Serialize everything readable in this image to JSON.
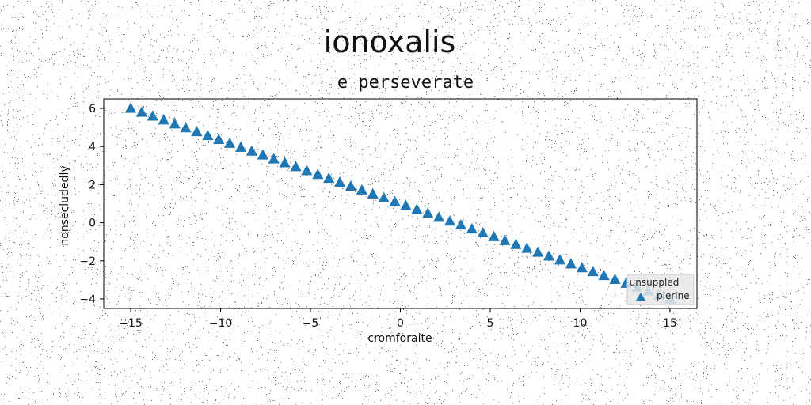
{
  "chart_data": {
    "type": "scatter",
    "title": "ionoxalis",
    "subtitle": "e perseverate",
    "xlabel": "cromforaite",
    "ylabel": "nonsecludedly",
    "xlim": [
      -16.5,
      16.5
    ],
    "ylim": [
      -4.5,
      6.5
    ],
    "xticks": [
      -15,
      -10,
      -5,
      0,
      5,
      10,
      15
    ],
    "xtick_labels": [
      "−15",
      "−10",
      "−5",
      "0",
      "5",
      "10",
      "15"
    ],
    "yticks": [
      -4,
      -2,
      0,
      2,
      4,
      6
    ],
    "ytick_labels": [
      "−4",
      "−2",
      "0",
      "2",
      "4",
      "6"
    ],
    "grid": false,
    "legend": {
      "title": "unsuppled",
      "placement": "lower-right",
      "entries": [
        "pierine"
      ]
    },
    "series": [
      {
        "name": "pierine",
        "marker": "triangle-up",
        "color": "#1f77b4",
        "x_start": -15,
        "x_end": 15,
        "count": 50,
        "y_start": 6.0,
        "y_end": -4.0
      }
    ]
  },
  "colors": {
    "marker": "#1f77b4",
    "axes": "#000000",
    "noise": "#000000"
  }
}
